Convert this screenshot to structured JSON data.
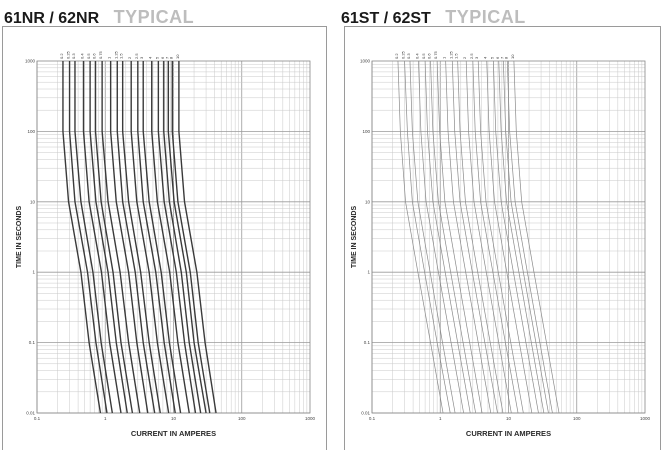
{
  "charts": [
    {
      "id": "left",
      "title": "61NR / 62NR",
      "subtitle": "TYPICAL",
      "curve_color": "#3a3a3a",
      "curve_weight": "heavy"
    },
    {
      "id": "right",
      "title": "61ST / 62ST",
      "subtitle": "TYPICAL",
      "curve_color": "#8a8a8a",
      "curve_weight": "light"
    }
  ],
  "chart_data": [
    {
      "type": "line",
      "title": "61NR / 62NR",
      "subtitle": "TYPICAL",
      "xlabel": "CURRENT IN AMPERES",
      "ylabel": "TIME IN SECONDS",
      "xscale": "log",
      "yscale": "log",
      "xlim": [
        0.1,
        1000
      ],
      "ylim": [
        0.01,
        1000
      ],
      "x_tick_labels": [
        "0.1",
        "1",
        "10",
        "100",
        "1000"
      ],
      "y_tick_labels": [
        "1000",
        "100",
        "10",
        "1",
        "0.1",
        "0.01"
      ],
      "grid": true,
      "series": [
        {
          "rating": 0.2,
          "x": [
            0.85,
            0.58,
            0.44,
            0.29,
            0.24,
            0.24
          ],
          "y": [
            0.01,
            0.1,
            1,
            10,
            100,
            1000
          ]
        },
        {
          "rating": 0.25,
          "x": [
            1.06,
            0.73,
            0.55,
            0.36,
            0.3,
            0.3
          ],
          "y": [
            0.01,
            0.1,
            1,
            10,
            100,
            1000
          ]
        },
        {
          "rating": 0.3,
          "x": [
            1.27,
            0.87,
            0.66,
            0.44,
            0.36,
            0.36
          ],
          "y": [
            0.01,
            0.1,
            1,
            10,
            100,
            1000
          ]
        },
        {
          "rating": 0.4,
          "x": [
            1.7,
            1.16,
            0.88,
            0.58,
            0.48,
            0.48
          ],
          "y": [
            0.01,
            0.1,
            1,
            10,
            100,
            1000
          ]
        },
        {
          "rating": 0.5,
          "x": [
            2.1,
            1.45,
            1.1,
            0.73,
            0.6,
            0.6
          ],
          "y": [
            0.01,
            0.1,
            1,
            10,
            100,
            1000
          ]
        },
        {
          "rating": 0.6,
          "x": [
            2.5,
            1.7,
            1.3,
            0.87,
            0.72,
            0.72
          ],
          "y": [
            0.01,
            0.1,
            1,
            10,
            100,
            1000
          ]
        },
        {
          "rating": 0.75,
          "x": [
            3.2,
            2.2,
            1.65,
            1.1,
            0.9,
            0.9
          ],
          "y": [
            0.01,
            0.1,
            1,
            10,
            100,
            1000
          ]
        },
        {
          "rating": 1,
          "x": [
            4.2,
            2.9,
            2.2,
            1.45,
            1.2,
            1.2
          ],
          "y": [
            0.01,
            0.1,
            1,
            10,
            100,
            1000
          ]
        },
        {
          "rating": 1.25,
          "x": [
            5.3,
            3.6,
            2.75,
            1.8,
            1.5,
            1.5
          ],
          "y": [
            0.01,
            0.1,
            1,
            10,
            100,
            1000
          ]
        },
        {
          "rating": 1.5,
          "x": [
            6.4,
            4.4,
            3.3,
            2.2,
            1.8,
            1.8
          ],
          "y": [
            0.01,
            0.1,
            1,
            10,
            100,
            1000
          ]
        },
        {
          "rating": 2,
          "x": [
            8.5,
            5.8,
            4.4,
            2.9,
            2.4,
            2.4
          ],
          "y": [
            0.01,
            0.1,
            1,
            10,
            100,
            1000
          ]
        },
        {
          "rating": 2.5,
          "x": [
            10.6,
            7.3,
            5.5,
            3.6,
            3.0,
            3.0
          ],
          "y": [
            0.01,
            0.1,
            1,
            10,
            100,
            1000
          ]
        },
        {
          "rating": 3,
          "x": [
            12.7,
            8.7,
            6.6,
            4.4,
            3.6,
            3.6
          ],
          "y": [
            0.01,
            0.1,
            1,
            10,
            100,
            1000
          ]
        },
        {
          "rating": 4,
          "x": [
            17,
            11.6,
            8.8,
            5.8,
            4.8,
            4.8
          ],
          "y": [
            0.01,
            0.1,
            1,
            10,
            100,
            1000
          ]
        },
        {
          "rating": 5,
          "x": [
            21,
            14.5,
            11,
            7.3,
            6.0,
            6.0
          ],
          "y": [
            0.01,
            0.1,
            1,
            10,
            100,
            1000
          ]
        },
        {
          "rating": 6,
          "x": [
            25,
            17,
            13,
            8.7,
            7.2,
            7.2
          ],
          "y": [
            0.01,
            0.1,
            1,
            10,
            100,
            1000
          ]
        },
        {
          "rating": 7,
          "x": [
            30,
            20,
            15.4,
            10.2,
            8.4,
            8.4
          ],
          "y": [
            0.01,
            0.1,
            1,
            10,
            100,
            1000
          ]
        },
        {
          "rating": 8,
          "x": [
            34,
            23,
            17.6,
            11.6,
            9.6,
            9.6
          ],
          "y": [
            0.01,
            0.1,
            1,
            10,
            100,
            1000
          ]
        },
        {
          "rating": 10,
          "x": [
            42,
            29,
            22,
            14.5,
            12,
            12
          ],
          "y": [
            0.01,
            0.1,
            1,
            10,
            100,
            1000
          ]
        }
      ]
    },
    {
      "type": "line",
      "title": "61ST / 62ST",
      "subtitle": "TYPICAL",
      "xlabel": "CURRENT IN AMPERES",
      "ylabel": "TIME IN SECONDS",
      "xscale": "log",
      "yscale": "log",
      "xlim": [
        0.1,
        1000
      ],
      "ylim": [
        0.01,
        1000
      ],
      "x_tick_labels": [
        "0.1",
        "1",
        "10",
        "100",
        "1000"
      ],
      "y_tick_labels": [
        "1000",
        "100",
        "10",
        "1",
        "0.1",
        "0.01"
      ],
      "grid": true,
      "series": [
        {
          "rating": 0.2,
          "x": [
            1.1,
            0.72,
            0.47,
            0.31,
            0.26,
            0.24
          ],
          "y": [
            0.01,
            0.1,
            1,
            10,
            100,
            1000
          ]
        },
        {
          "rating": 0.25,
          "x": [
            1.4,
            0.9,
            0.59,
            0.39,
            0.33,
            0.3
          ],
          "y": [
            0.01,
            0.1,
            1,
            10,
            100,
            1000
          ]
        },
        {
          "rating": 0.3,
          "x": [
            1.65,
            1.08,
            0.71,
            0.47,
            0.39,
            0.36
          ],
          "y": [
            0.01,
            0.1,
            1,
            10,
            100,
            1000
          ]
        },
        {
          "rating": 0.4,
          "x": [
            2.2,
            1.44,
            0.94,
            0.62,
            0.52,
            0.48
          ],
          "y": [
            0.01,
            0.1,
            1,
            10,
            100,
            1000
          ]
        },
        {
          "rating": 0.5,
          "x": [
            2.75,
            1.8,
            1.18,
            0.78,
            0.65,
            0.6
          ],
          "y": [
            0.01,
            0.1,
            1,
            10,
            100,
            1000
          ]
        },
        {
          "rating": 0.6,
          "x": [
            3.3,
            2.16,
            1.42,
            0.94,
            0.78,
            0.72
          ],
          "y": [
            0.01,
            0.1,
            1,
            10,
            100,
            1000
          ]
        },
        {
          "rating": 0.75,
          "x": [
            4.1,
            2.7,
            1.77,
            1.17,
            0.98,
            0.9
          ],
          "y": [
            0.01,
            0.1,
            1,
            10,
            100,
            1000
          ]
        },
        {
          "rating": 1,
          "x": [
            5.5,
            3.6,
            2.36,
            1.56,
            1.3,
            1.2
          ],
          "y": [
            0.01,
            0.1,
            1,
            10,
            100,
            1000
          ]
        },
        {
          "rating": 1.25,
          "x": [
            6.9,
            4.5,
            2.95,
            1.95,
            1.63,
            1.5
          ],
          "y": [
            0.01,
            0.1,
            1,
            10,
            100,
            1000
          ]
        },
        {
          "rating": 1.5,
          "x": [
            8.3,
            5.4,
            3.54,
            2.34,
            1.95,
            1.8
          ],
          "y": [
            0.01,
            0.1,
            1,
            10,
            100,
            1000
          ]
        },
        {
          "rating": 2,
          "x": [
            11,
            7.2,
            4.72,
            3.12,
            2.6,
            2.4
          ],
          "y": [
            0.01,
            0.1,
            1,
            10,
            100,
            1000
          ]
        },
        {
          "rating": 2.5,
          "x": [
            13.8,
            9,
            5.9,
            3.9,
            3.25,
            3.0
          ],
          "y": [
            0.01,
            0.1,
            1,
            10,
            100,
            1000
          ]
        },
        {
          "rating": 3,
          "x": [
            16.5,
            10.8,
            7.08,
            4.68,
            3.9,
            3.6
          ],
          "y": [
            0.01,
            0.1,
            1,
            10,
            100,
            1000
          ]
        },
        {
          "rating": 4,
          "x": [
            22,
            14.4,
            9.44,
            6.24,
            5.2,
            4.8
          ],
          "y": [
            0.01,
            0.1,
            1,
            10,
            100,
            1000
          ]
        },
        {
          "rating": 5,
          "x": [
            27.5,
            18,
            11.8,
            7.8,
            6.5,
            6.0
          ],
          "y": [
            0.01,
            0.1,
            1,
            10,
            100,
            1000
          ]
        },
        {
          "rating": 6,
          "x": [
            33,
            21.6,
            14.2,
            9.36,
            7.8,
            7.2
          ],
          "y": [
            0.01,
            0.1,
            1,
            10,
            100,
            1000
          ]
        },
        {
          "rating": 7,
          "x": [
            38.5,
            25.2,
            16.5,
            10.9,
            9.1,
            8.4
          ],
          "y": [
            0.01,
            0.1,
            1,
            10,
            100,
            1000
          ]
        },
        {
          "rating": 8,
          "x": [
            44,
            28.8,
            18.9,
            12.5,
            10.4,
            9.6
          ],
          "y": [
            0.01,
            0.1,
            1,
            10,
            100,
            1000
          ]
        },
        {
          "rating": 10,
          "x": [
            55,
            36,
            23.6,
            15.6,
            13,
            12
          ],
          "y": [
            0.01,
            0.1,
            1,
            10,
            100,
            1000
          ]
        }
      ]
    }
  ]
}
